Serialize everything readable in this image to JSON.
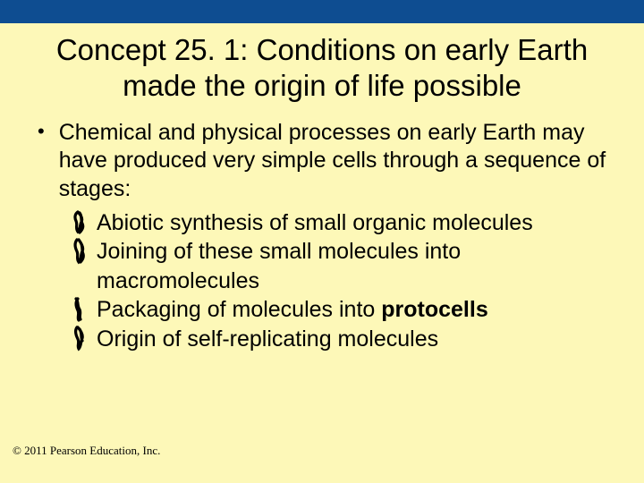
{
  "colors": {
    "slide_bg": "#fdf8b8",
    "top_bar": "#0e4d91",
    "text": "#000000",
    "scribble": "#000000"
  },
  "title": "Concept 25. 1: Conditions on early Earth made the origin of life possible",
  "bullet": {
    "text": "Chemical and physical processes on early Earth may have produced very simple cells through a sequence of stages:"
  },
  "sub_items": [
    {
      "text": "Abiotic synthesis of small organic molecules"
    },
    {
      "text": "Joining of these small molecules into macromolecules"
    },
    {
      "pre": "Packaging of molecules into ",
      "bold": "protocells"
    },
    {
      "text": "Origin of self-replicating molecules"
    }
  ],
  "copyright": "© 2011 Pearson Education, Inc.",
  "scribble_paths": [
    "M9 3 C6 5 5 9 7 13 C9 17 6 21 9 25 C12 22 11 18 13 14 C15 10 12 6 9 3 M11 4 C14 7 12 12 14 16 C16 20 13 24 11 26",
    "M8 2 C5 6 6 11 8 15 C10 19 7 23 10 27 C13 24 12 19 14 15 C16 11 13 6 10 2 M12 5 C15 9 13 14 15 18 C16 22 14 25 12 27",
    "M7 3 C10 6 8 11 11 15 C13 19 10 23 12 26 M9 3 C6 7 7 12 9 16 C11 20 8 24 10 27",
    "M8 2 C5 6 7 11 9 15 C11 19 8 23 10 26 C13 23 12 18 14 14 C15 10 12 5 9 2 M11 4 C14 8 12 13 14 17"
  ]
}
